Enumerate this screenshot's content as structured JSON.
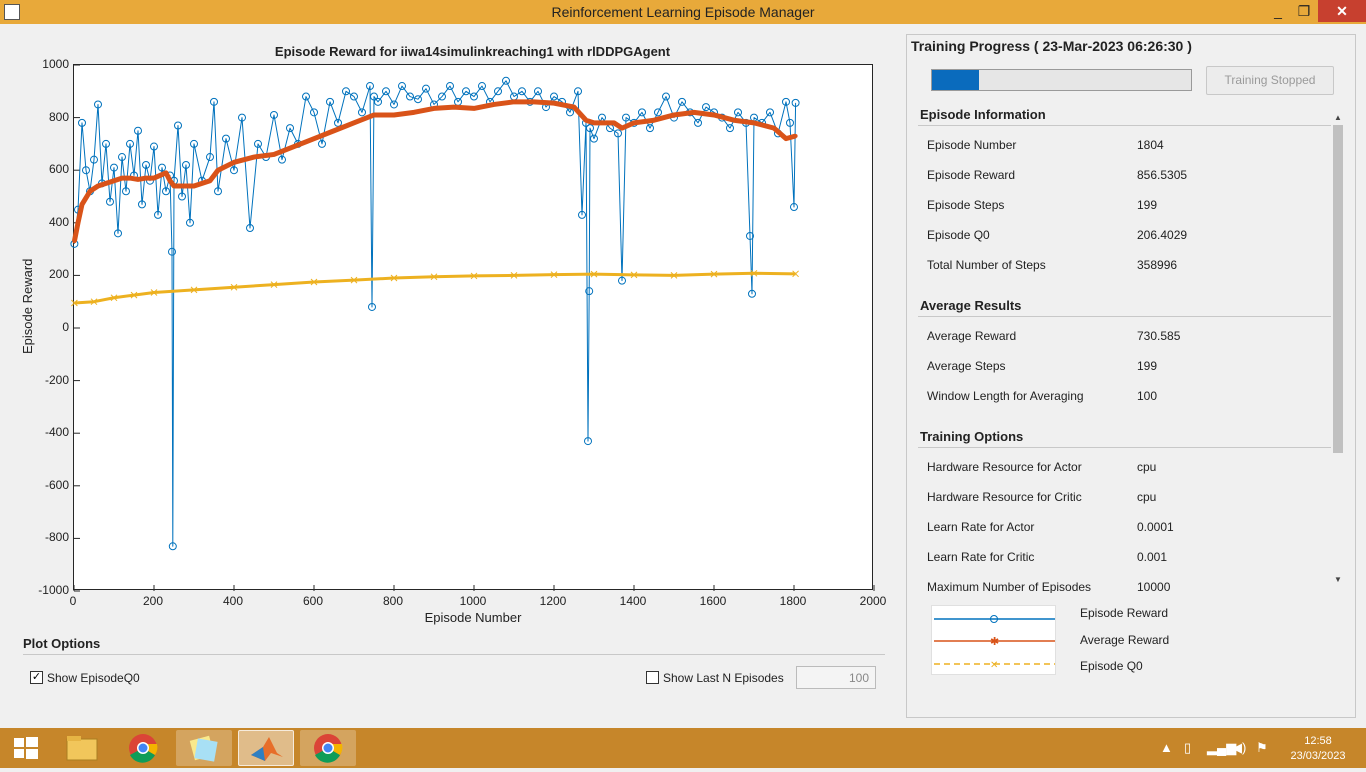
{
  "window": {
    "title": "Reinforcement Learning Episode Manager",
    "minimize": "_",
    "maximize": "❐",
    "close": "✕"
  },
  "plot": {
    "title": "Episode  Reward  for  iiwa14simulinkreaching1  with  rlDDPGAgent",
    "xlabel": "Episode Number",
    "ylabel": "Episode Reward"
  },
  "plot_options": {
    "title": "Plot Options",
    "show_q0_label": "Show EpisodeQ0",
    "show_q0_checked": true,
    "show_last_n_label": "Show Last N Episodes",
    "show_last_n_checked": false,
    "last_n_value": "100"
  },
  "progress": {
    "title": "Training Progress ( 23-Mar-2023 06:26:30 )",
    "fraction": 0.18,
    "stopped_label": "Training Stopped"
  },
  "episode_info": {
    "title": "Episode Information",
    "rows": [
      {
        "label": "Episode Number",
        "value": "1804"
      },
      {
        "label": "Episode Reward",
        "value": "856.5305"
      },
      {
        "label": "Episode Steps",
        "value": "199"
      },
      {
        "label": "Episode Q0",
        "value": "206.4029"
      },
      {
        "label": "Total Number of Steps",
        "value": "358996"
      }
    ]
  },
  "average_results": {
    "title": "Average Results",
    "rows": [
      {
        "label": "Average Reward",
        "value": "730.585"
      },
      {
        "label": "Average Steps",
        "value": "199"
      },
      {
        "label": "Window Length for Averaging",
        "value": "100"
      }
    ]
  },
  "training_options": {
    "title": "Training Options",
    "rows": [
      {
        "label": "Hardware Resource for Actor",
        "value": "cpu"
      },
      {
        "label": "Hardware Resource for Critic",
        "value": "cpu"
      },
      {
        "label": "Learn Rate for Actor",
        "value": "0.0001"
      },
      {
        "label": "Learn Rate for Critic",
        "value": "0.001"
      },
      {
        "label": "Maximum Number of Episodes",
        "value": "10000"
      }
    ]
  },
  "legend": {
    "episode_reward": "Episode Reward",
    "average_reward": "Average Reward",
    "episode_q0": "Episode Q0"
  },
  "colors": {
    "episode_reward": "#0072bd",
    "average_reward": "#d95319",
    "episode_q0": "#edb120",
    "titlebar": "#e8a93a",
    "taskbar": "#c6862a"
  },
  "taskbar": {
    "time": "12:58",
    "date": "23/03/2023",
    "icons": [
      "start-icon",
      "file-explorer-icon",
      "chrome-icon",
      "sticky-notes-icon",
      "matlab-icon",
      "chrome-icon"
    ]
  },
  "chart_data": {
    "type": "line",
    "title": "Episode  Reward  for  iiwa14simulinkreaching1  with  rlDDPGAgent",
    "xlabel": "Episode Number",
    "ylabel": "Episode Reward",
    "xlim": [
      0,
      2000
    ],
    "ylim": [
      -1000,
      1000
    ],
    "xticks": [
      0,
      200,
      400,
      600,
      800,
      1000,
      1200,
      1400,
      1600,
      1800,
      2000
    ],
    "yticks": [
      -1000,
      -800,
      -600,
      -400,
      -200,
      0,
      200,
      400,
      600,
      800,
      1000
    ],
    "legend_position": "bottom-right panel",
    "series": [
      {
        "name": "Episode Reward",
        "marker": "circle",
        "x": [
          1,
          10,
          20,
          30,
          40,
          50,
          60,
          70,
          80,
          90,
          100,
          110,
          120,
          130,
          140,
          150,
          160,
          170,
          180,
          190,
          200,
          210,
          220,
          230,
          240,
          245,
          247,
          250,
          260,
          270,
          280,
          290,
          300,
          320,
          340,
          350,
          360,
          380,
          400,
          420,
          440,
          460,
          480,
          500,
          520,
          540,
          560,
          580,
          600,
          620,
          640,
          660,
          680,
          700,
          720,
          740,
          745,
          750,
          760,
          780,
          800,
          820,
          840,
          860,
          880,
          900,
          920,
          940,
          960,
          980,
          1000,
          1020,
          1040,
          1060,
          1080,
          1100,
          1120,
          1140,
          1160,
          1180,
          1200,
          1220,
          1240,
          1260,
          1270,
          1280,
          1285,
          1288,
          1290,
          1300,
          1320,
          1340,
          1360,
          1370,
          1380,
          1400,
          1420,
          1440,
          1460,
          1480,
          1500,
          1520,
          1540,
          1560,
          1580,
          1600,
          1620,
          1640,
          1660,
          1680,
          1690,
          1695,
          1700,
          1720,
          1740,
          1760,
          1780,
          1790,
          1800,
          1804
        ],
        "y": [
          320,
          450,
          780,
          600,
          520,
          640,
          850,
          550,
          700,
          480,
          610,
          360,
          650,
          520,
          700,
          580,
          750,
          470,
          620,
          560,
          690,
          430,
          610,
          520,
          580,
          290,
          -830,
          560,
          770,
          500,
          620,
          400,
          700,
          560,
          650,
          860,
          520,
          720,
          600,
          800,
          380,
          700,
          650,
          810,
          640,
          760,
          700,
          880,
          820,
          700,
          860,
          780,
          900,
          880,
          820,
          920,
          80,
          880,
          860,
          900,
          850,
          920,
          880,
          870,
          910,
          850,
          880,
          920,
          860,
          900,
          880,
          920,
          860,
          900,
          940,
          880,
          900,
          860,
          900,
          840,
          880,
          860,
          820,
          900,
          430,
          780,
          -430,
          140,
          760,
          720,
          800,
          760,
          740,
          180,
          800,
          780,
          820,
          760,
          820,
          880,
          800,
          860,
          820,
          780,
          840,
          820,
          800,
          760,
          820,
          780,
          350,
          130,
          800,
          780,
          820,
          740,
          860,
          780,
          460,
          856
        ]
      },
      {
        "name": "Average Reward",
        "marker": "asterisk",
        "x": [
          1,
          10,
          20,
          40,
          60,
          80,
          100,
          120,
          140,
          160,
          180,
          200,
          230,
          240,
          250,
          270,
          300,
          340,
          360,
          400,
          450,
          500,
          550,
          600,
          650,
          700,
          750,
          800,
          850,
          900,
          950,
          1000,
          1050,
          1100,
          1150,
          1200,
          1250,
          1280,
          1300,
          1350,
          1370,
          1400,
          1450,
          1500,
          1550,
          1600,
          1650,
          1700,
          1750,
          1780,
          1804
        ],
        "y": [
          330,
          400,
          470,
          520,
          540,
          550,
          560,
          570,
          570,
          565,
          570,
          570,
          590,
          560,
          540,
          540,
          540,
          560,
          600,
          630,
          650,
          660,
          690,
          720,
          750,
          780,
          810,
          810,
          820,
          835,
          840,
          835,
          850,
          860,
          860,
          855,
          840,
          790,
          780,
          780,
          760,
          780,
          790,
          810,
          820,
          810,
          790,
          780,
          760,
          720,
          730
        ]
      },
      {
        "name": "Episode Q0",
        "marker": "x",
        "x": [
          1,
          50,
          100,
          150,
          200,
          300,
          400,
          500,
          600,
          700,
          800,
          900,
          1000,
          1100,
          1200,
          1300,
          1400,
          1500,
          1600,
          1700,
          1804
        ],
        "y": [
          95,
          100,
          115,
          125,
          135,
          145,
          155,
          165,
          175,
          182,
          190,
          195,
          198,
          200,
          203,
          205,
          202,
          200,
          205,
          208,
          206
        ]
      }
    ]
  }
}
